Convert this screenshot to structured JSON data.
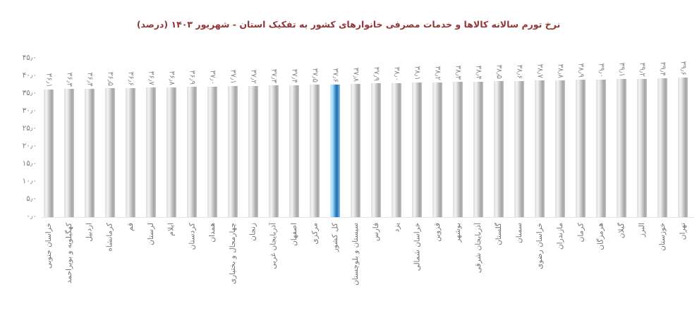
{
  "chart_data": {
    "type": "bar",
    "title": "نرخ تورم سالانه کالاها و خدمات مصرفی خانوارهای کشور به تفکیک استان - شهریور ۱۴۰۳ (درصد)",
    "title_color": "#943634",
    "xlabel": "",
    "ylabel": "",
    "ylim": [
      0,
      45
    ],
    "ytick_step": 5,
    "ytick_labels": [
      "۴۵٫۰",
      "۴۰٫۰",
      "۳۵٫۰",
      "۳۰٫۰",
      "۲۵٫۰",
      "۲۰٫۰",
      "۱۵٫۰",
      "۱۰٫۰",
      "۵٫۰",
      "۰٫۰"
    ],
    "grid": false,
    "legend": null,
    "categories": [
      "خراسان جنوبی",
      "کهگیلویه و بویراحمد",
      "اردبیل",
      "کرمانشاه",
      "قم",
      "لرستان",
      "ایلام",
      "کردستان",
      "همدان",
      "چهارمحال و بختیاری",
      "زنجان",
      "آذربایجان غربی",
      "اصفهان",
      "مرکزی",
      "کل کشور",
      "سیستان و بلوچستان",
      "فارس",
      "یزد",
      "خراسان شمالی",
      "قزوین",
      "بوشهر",
      "آذربایجان شرقی",
      "گلستان",
      "سمنان",
      "خراسان رضوی",
      "مازندران",
      "کرمان",
      "هرمزگان",
      "گیلان",
      "البرز",
      "خوزستان",
      "تهران"
    ],
    "values": [
      36.1,
      36.3,
      36.4,
      36.5,
      36.6,
      36.7,
      36.8,
      36.9,
      37.0,
      37.1,
      37.2,
      37.3,
      37.4,
      37.5,
      37.6,
      37.8,
      37.9,
      38.0,
      38.1,
      38.2,
      38.3,
      38.4,
      38.5,
      38.6,
      38.7,
      38.8,
      38.9,
      39.0,
      39.1,
      39.2,
      39.4,
      39.6
    ],
    "value_labels": [
      "۳۶٫۱",
      "۳۶٫۳",
      "۳۶٫۴",
      "۳۶٫۵",
      "۳۶٫۶",
      "۳۶٫۷",
      "۳۶٫۸",
      "۳۶٫۹",
      "۳۷٫۰",
      "۳۷٫۱",
      "۳۷٫۲",
      "۳۷٫۳",
      "۳۷٫۴",
      "۳۷٫۵",
      "۳۷٫۶",
      "۳۷٫۸",
      "۳۷٫۹",
      "۳۸٫۰",
      "۳۸٫۱",
      "۳۸٫۲",
      "۳۸٫۳",
      "۳۸٫۴",
      "۳۸٫۵",
      "۳۸٫۶",
      "۳۸٫۷",
      "۳۸٫۸",
      "۳۸٫۹",
      "۳۹٫۰",
      "۳۹٫۱",
      "۳۹٫۲",
      "۳۹٫۴",
      "۳۹٫۶"
    ],
    "highlight_index": 14,
    "highlight_category": "کل کشور",
    "colors": {
      "bar": "#c0c0c0",
      "bar_highlight": "#1d6db4",
      "value_label": "#8c8c8c",
      "axis_label": "#7f7f7f",
      "category_label": "#737373"
    }
  }
}
